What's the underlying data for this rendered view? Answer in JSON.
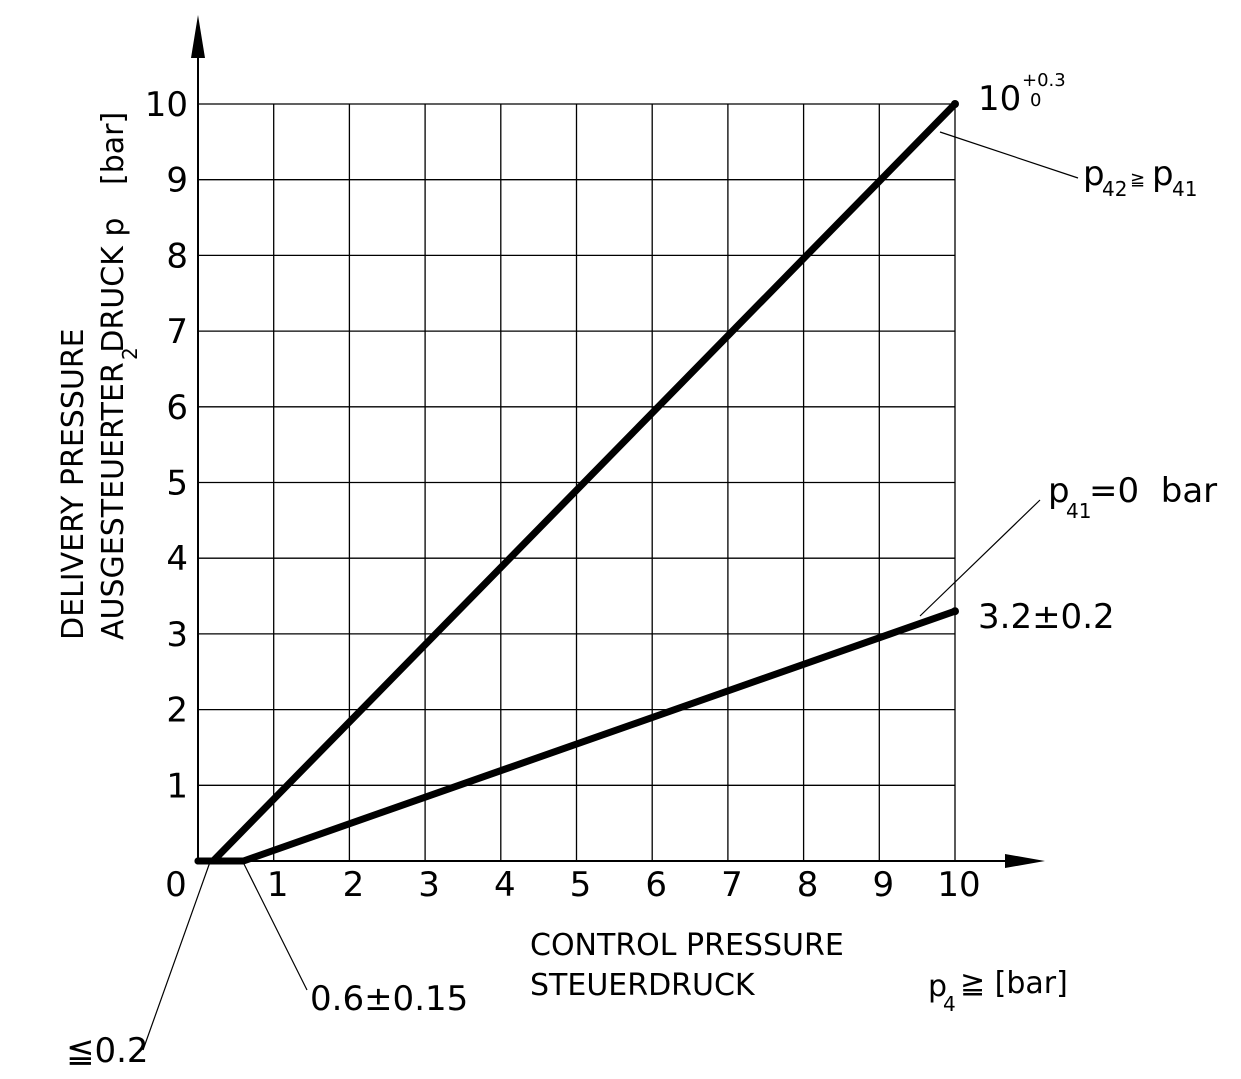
{
  "chart_data": {
    "type": "line",
    "title": "",
    "xlabel": [
      "CONTROL PRESSURE",
      "STEUERDRUCK"
    ],
    "xunit": {
      "base": "p",
      "sub": "4",
      "rest": "≧ [bar]"
    },
    "ylabel": [
      "DELIVERY PRESSURE",
      "AUSGESTEUERTER DRUCK p",
      "[bar]"
    ],
    "ylabel_sub": "2",
    "xlim": [
      0,
      10
    ],
    "ylim": [
      0,
      10
    ],
    "x_ticks": [
      "0",
      "1",
      "2",
      "3",
      "4",
      "5",
      "6",
      "7",
      "8",
      "9",
      "10"
    ],
    "y_ticks": [
      "1",
      "2",
      "3",
      "4",
      "5",
      "6",
      "7",
      "8",
      "9",
      "10"
    ],
    "grid": true,
    "series": [
      {
        "x": [
          0,
          0.2,
          10
        ],
        "y": [
          0,
          0,
          10
        ]
      },
      {
        "x": [
          0,
          0.6,
          10
        ],
        "y": [
          0,
          0,
          3.3
        ]
      }
    ],
    "annotations": {
      "top_value": {
        "base": "10",
        "sup": "+0.3",
        "sub": "0"
      },
      "top_condition": {
        "p1": "p",
        "s1": "42",
        "op": "≧",
        "p2": "p",
        "s2": "41"
      },
      "bottom_condition": {
        "p": "p",
        "s": "41",
        "rest": "=0  bar"
      },
      "bottom_value": "3.2±0.2",
      "start_upper": "≦0.2",
      "start_lower": "0.6±0.15"
    }
  }
}
